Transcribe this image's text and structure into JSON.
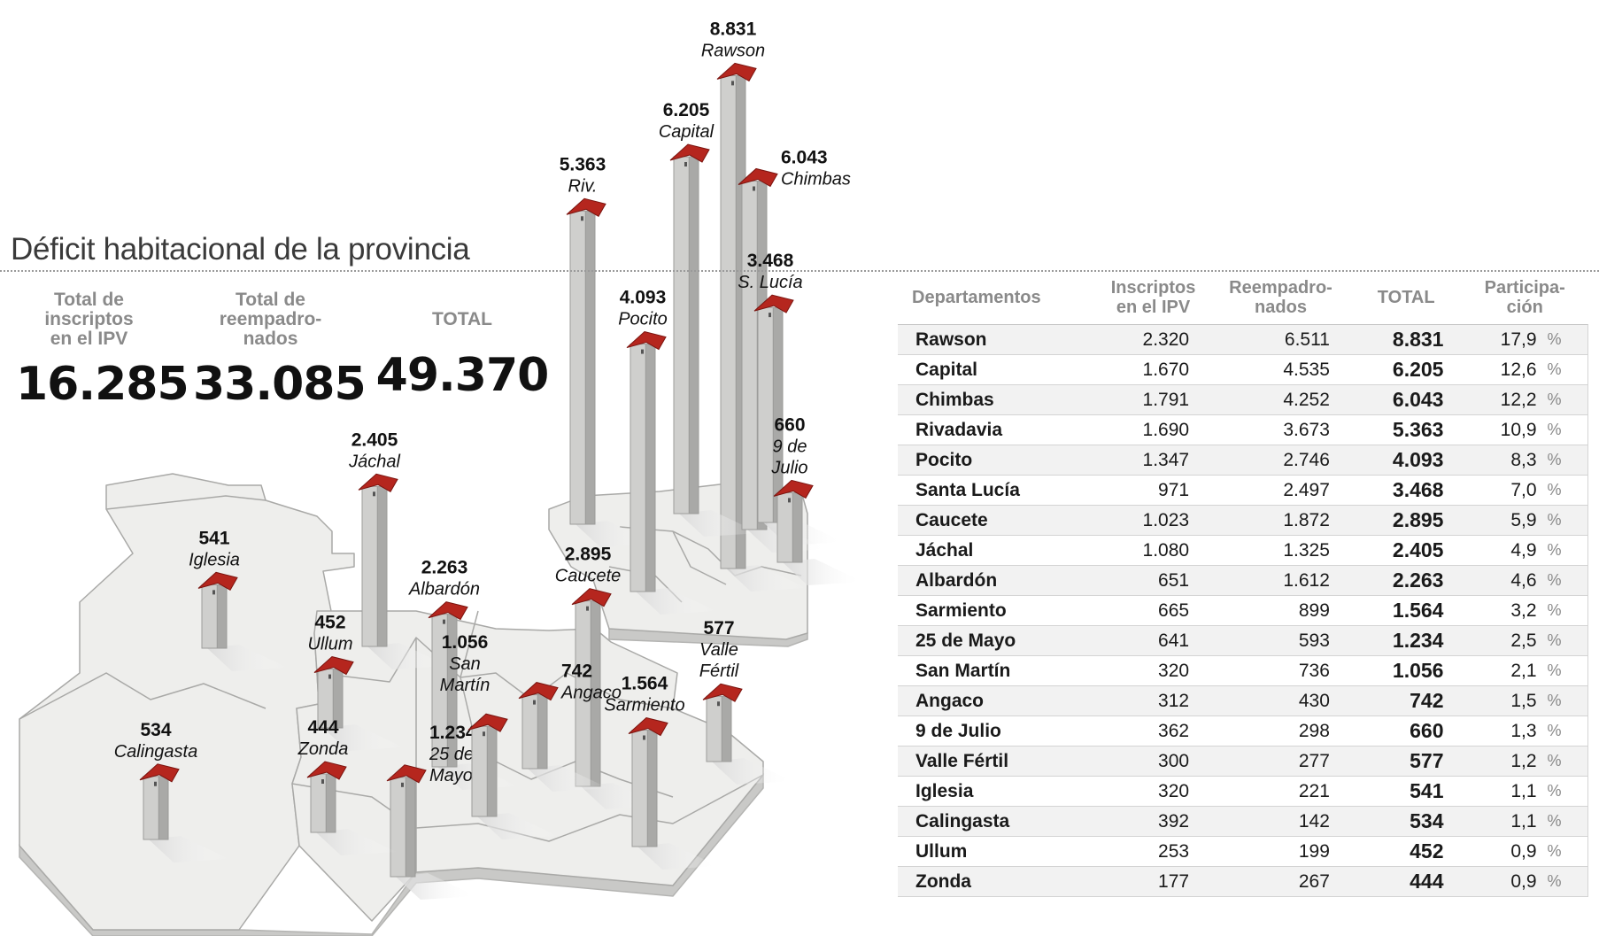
{
  "title": "Déficit habitacional de la provincia",
  "summary": [
    {
      "label": "Total de\ninscriptos\nen el IPV",
      "value": "16.285"
    },
    {
      "label": "Total de\nreempadro-\nnados",
      "value": "33.085"
    },
    {
      "label": "TOTAL",
      "value": "49.370"
    }
  ],
  "table": {
    "headers": [
      "Departamentos",
      "Inscriptos\nen el IPV",
      "Reempadro-\nnados",
      "TOTAL",
      "Participa-\nción"
    ],
    "percent_sign": "%",
    "rows": [
      {
        "dep": "Rawson",
        "ipv": "2.320",
        "reemp": "6.511",
        "total": "8.831",
        "part": "17,9"
      },
      {
        "dep": "Capital",
        "ipv": "1.670",
        "reemp": "4.535",
        "total": "6.205",
        "part": "12,6"
      },
      {
        "dep": "Chimbas",
        "ipv": "1.791",
        "reemp": "4.252",
        "total": "6.043",
        "part": "12,2"
      },
      {
        "dep": "Rivadavia",
        "ipv": "1.690",
        "reemp": "3.673",
        "total": "5.363",
        "part": "10,9"
      },
      {
        "dep": "Pocito",
        "ipv": "1.347",
        "reemp": "2.746",
        "total": "4.093",
        "part": "8,3"
      },
      {
        "dep": "Santa Lucía",
        "ipv": "971",
        "reemp": "2.497",
        "total": "3.468",
        "part": "7,0"
      },
      {
        "dep": "Caucete",
        "ipv": "1.023",
        "reemp": "1.872",
        "total": "2.895",
        "part": "5,9"
      },
      {
        "dep": "Jáchal",
        "ipv": "1.080",
        "reemp": "1.325",
        "total": "2.405",
        "part": "4,9"
      },
      {
        "dep": "Albardón",
        "ipv": "651",
        "reemp": "1.612",
        "total": "2.263",
        "part": "4,6"
      },
      {
        "dep": "Sarmiento",
        "ipv": "665",
        "reemp": "899",
        "total": "1.564",
        "part": "3,2"
      },
      {
        "dep": "25 de Mayo",
        "ipv": "641",
        "reemp": "593",
        "total": "1.234",
        "part": "2,5"
      },
      {
        "dep": "San Martín",
        "ipv": "320",
        "reemp": "736",
        "total": "1.056",
        "part": "2,1"
      },
      {
        "dep": "Angaco",
        "ipv": "312",
        "reemp": "430",
        "total": "742",
        "part": "1,5"
      },
      {
        "dep": "9 de Julio",
        "ipv": "362",
        "reemp": "298",
        "total": "660",
        "part": "1,3"
      },
      {
        "dep": "Valle Fértil",
        "ipv": "300",
        "reemp": "277",
        "total": "577",
        "part": "1,2"
      },
      {
        "dep": "Iglesia",
        "ipv": "320",
        "reemp": "221",
        "total": "541",
        "part": "1,1"
      },
      {
        "dep": "Calingasta",
        "ipv": "392",
        "reemp": "142",
        "total": "534",
        "part": "1,1"
      },
      {
        "dep": "Ullum",
        "ipv": "253",
        "reemp": "199",
        "total": "452",
        "part": "0,9"
      },
      {
        "dep": "Zonda",
        "ipv": "177",
        "reemp": "267",
        "total": "444",
        "part": "0,9"
      }
    ]
  },
  "chart_data": {
    "type": "bar",
    "title": "Déficit habitacional de la provincia",
    "colors": {
      "column": "#cfcfcd",
      "column_dark": "#a9a9a7",
      "roof": "#b5261e",
      "map": "#eeeeec"
    },
    "series": [
      {
        "values": [
          8831,
          6205,
          6043,
          5363,
          4093,
          3468,
          2895,
          2405,
          2263,
          1564,
          1234,
          1056,
          742,
          660,
          577,
          541,
          534,
          452,
          444
        ]
      }
    ],
    "categories": [
      "Rawson",
      "Capital",
      "Chimbas",
      "Rivadavia",
      "Pocito",
      "Santa Lucía",
      "Caucete",
      "Jáchal",
      "Albardón",
      "Sarmiento",
      "25 de Mayo",
      "San Martín",
      "Angaco",
      "9 de Julio",
      "Valle Fértil",
      "Iglesia",
      "Calingasta",
      "Ullum",
      "Zonda"
    ],
    "columns": [
      {
        "name_lines": [
          "Rawson"
        ],
        "value_label": "8.831",
        "value": 8831
      },
      {
        "name_lines": [
          "Capital"
        ],
        "value_label": "6.205",
        "value": 6205
      },
      {
        "name_lines": [
          "Chimbas"
        ],
        "value_label": "6.043",
        "value": 6043
      },
      {
        "name_lines": [
          "Riv."
        ],
        "value_label": "5.363",
        "value": 5363
      },
      {
        "name_lines": [
          "Pocito"
        ],
        "value_label": "4.093",
        "value": 4093
      },
      {
        "name_lines": [
          "S. Lucía"
        ],
        "value_label": "3.468",
        "value": 3468
      },
      {
        "name_lines": [
          "Caucete"
        ],
        "value_label": "2.895",
        "value": 2895
      },
      {
        "name_lines": [
          "Jáchal"
        ],
        "value_label": "2.405",
        "value": 2405
      },
      {
        "name_lines": [
          "Albardón"
        ],
        "value_label": "2.263",
        "value": 2263
      },
      {
        "name_lines": [
          "Sarmiento"
        ],
        "value_label": "1.564",
        "value": 1564
      },
      {
        "name_lines": [
          "25 de",
          "Mayo"
        ],
        "value_label": "1.234",
        "value": 1234
      },
      {
        "name_lines": [
          "San",
          "Martín"
        ],
        "value_label": "1.056",
        "value": 1056
      },
      {
        "name_lines": [
          "Angaco"
        ],
        "value_label": "742",
        "value": 742
      },
      {
        "name_lines": [
          "9 de",
          "Julio"
        ],
        "value_label": "660",
        "value": 660
      },
      {
        "name_lines": [
          "Valle",
          "Fértil"
        ],
        "value_label": "577",
        "value": 577
      },
      {
        "name_lines": [
          "Iglesia"
        ],
        "value_label": "541",
        "value": 541
      },
      {
        "name_lines": [
          "Calingasta"
        ],
        "value_label": "534",
        "value": 534
      },
      {
        "name_lines": [
          "Ullum"
        ],
        "value_label": "452",
        "value": 452
      },
      {
        "name_lines": [
          "Zonda"
        ],
        "value_label": "444",
        "value": 444
      }
    ]
  }
}
